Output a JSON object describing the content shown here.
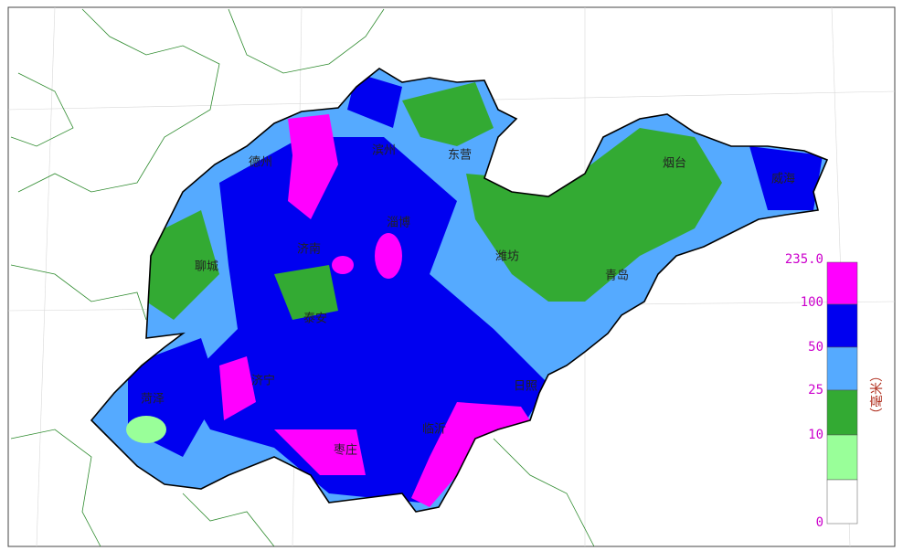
{
  "map": {
    "cities": [
      "德州",
      "滨州",
      "东营",
      "烟台",
      "威海",
      "淄博",
      "济南",
      "聊城",
      "潍坊",
      "青岛",
      "泰安",
      "济宁",
      "菏泽",
      "日照",
      "临沂",
      "枣庄"
    ],
    "legend": {
      "labels": [
        "235.0",
        "100",
        "50",
        "25",
        "10",
        "0"
      ],
      "colors": [
        "#ff00ff",
        "#0000f0",
        "#55aaff",
        "#33aa33",
        "#99ff99",
        "#ffffff"
      ],
      "unit": "（毫米）"
    }
  }
}
